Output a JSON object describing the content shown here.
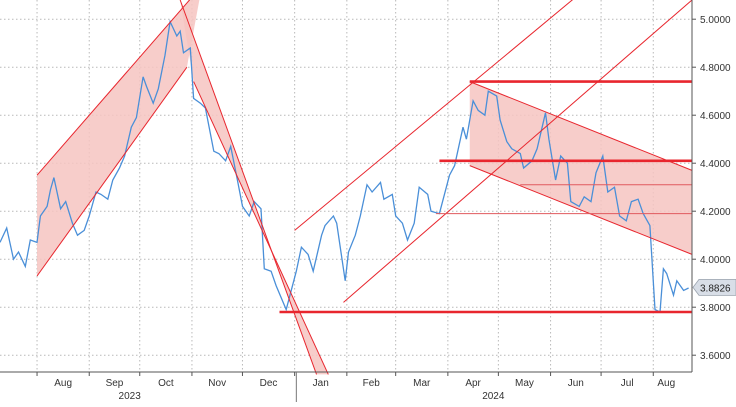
{
  "chart_data": {
    "type": "line",
    "title": "",
    "xlabel": "",
    "ylabel": "",
    "ylim": [
      3.53,
      5.08
    ],
    "yticks": [
      3.6,
      3.8,
      4.0,
      4.2,
      4.4,
      4.6,
      4.8,
      5.0
    ],
    "ytick_labels": [
      "3.6000",
      "3.8000",
      "4.0000",
      "4.2000",
      "4.4000",
      "4.6000",
      "4.8000",
      "5.0000"
    ],
    "x_range": [
      "2023-07-10",
      "2024-08-24"
    ],
    "month_ticks": [
      {
        "date": "2023-08-01",
        "label": "Aug"
      },
      {
        "date": "2023-09-01",
        "label": "Sep"
      },
      {
        "date": "2023-10-01",
        "label": "Oct"
      },
      {
        "date": "2023-11-01",
        "label": "Nov"
      },
      {
        "date": "2023-12-01",
        "label": "Dec"
      },
      {
        "date": "2024-01-01",
        "label": "Jan"
      },
      {
        "date": "2024-02-01",
        "label": "Feb"
      },
      {
        "date": "2024-03-01",
        "label": "Mar"
      },
      {
        "date": "2024-04-01",
        "label": "Apr"
      },
      {
        "date": "2024-05-01",
        "label": "May"
      },
      {
        "date": "2024-06-01",
        "label": "Jun"
      },
      {
        "date": "2024-07-01",
        "label": "Jul"
      },
      {
        "date": "2024-08-01",
        "label": "Aug"
      }
    ],
    "year_labels": [
      {
        "date": "2023-09-25",
        "label": "2023"
      },
      {
        "date": "2024-04-28",
        "label": "2024"
      }
    ],
    "year_separator": "2024-01-02",
    "last_value": 3.8826,
    "last_value_label": "3.8826",
    "grid": true,
    "colors": {
      "series": "#4a8fd8",
      "annotation": "#e8262e",
      "channel_fill": "#f6c4c1",
      "last_value_box": "#d8dee7"
    },
    "series": [
      {
        "values": [
          [
            "2023-07-10",
            4.07
          ],
          [
            "2023-07-14",
            4.13
          ],
          [
            "2023-07-18",
            4.0
          ],
          [
            "2023-07-21",
            4.03
          ],
          [
            "2023-07-25",
            3.97
          ],
          [
            "2023-07-28",
            4.08
          ],
          [
            "2023-08-01",
            4.07
          ],
          [
            "2023-08-03",
            4.18
          ],
          [
            "2023-08-07",
            4.22
          ],
          [
            "2023-08-09",
            4.29
          ],
          [
            "2023-08-11",
            4.34
          ],
          [
            "2023-08-15",
            4.21
          ],
          [
            "2023-08-18",
            4.24
          ],
          [
            "2023-08-22",
            4.15
          ],
          [
            "2023-08-25",
            4.1
          ],
          [
            "2023-08-29",
            4.12
          ],
          [
            "2023-09-01",
            4.18
          ],
          [
            "2023-09-05",
            4.28
          ],
          [
            "2023-09-08",
            4.27
          ],
          [
            "2023-09-12",
            4.25
          ],
          [
            "2023-09-15",
            4.33
          ],
          [
            "2023-09-19",
            4.38
          ],
          [
            "2023-09-22",
            4.43
          ],
          [
            "2023-09-26",
            4.55
          ],
          [
            "2023-09-29",
            4.59
          ],
          [
            "2023-10-03",
            4.76
          ],
          [
            "2023-10-05",
            4.72
          ],
          [
            "2023-10-09",
            4.65
          ],
          [
            "2023-10-12",
            4.71
          ],
          [
            "2023-10-16",
            4.85
          ],
          [
            "2023-10-19",
            4.99
          ],
          [
            "2023-10-23",
            4.93
          ],
          [
            "2023-10-25",
            4.95
          ],
          [
            "2023-10-27",
            4.86
          ],
          [
            "2023-10-31",
            4.88
          ],
          [
            "2023-11-02",
            4.67
          ],
          [
            "2023-11-06",
            4.65
          ],
          [
            "2023-11-09",
            4.63
          ],
          [
            "2023-11-14",
            4.45
          ],
          [
            "2023-11-17",
            4.44
          ],
          [
            "2023-11-21",
            4.41
          ],
          [
            "2023-11-24",
            4.47
          ],
          [
            "2023-11-28",
            4.33
          ],
          [
            "2023-12-01",
            4.22
          ],
          [
            "2023-12-05",
            4.18
          ],
          [
            "2023-12-08",
            4.24
          ],
          [
            "2023-12-12",
            4.21
          ],
          [
            "2023-12-14",
            3.96
          ],
          [
            "2023-12-18",
            3.95
          ],
          [
            "2023-12-21",
            3.89
          ],
          [
            "2023-12-27",
            3.79
          ],
          [
            "2024-01-02",
            3.95
          ],
          [
            "2024-01-05",
            4.05
          ],
          [
            "2024-01-09",
            4.02
          ],
          [
            "2024-01-12",
            3.95
          ],
          [
            "2024-01-17",
            4.1
          ],
          [
            "2024-01-19",
            4.14
          ],
          [
            "2024-01-24",
            4.18
          ],
          [
            "2024-01-26",
            4.15
          ],
          [
            "2024-01-31",
            3.91
          ],
          [
            "2024-02-02",
            4.03
          ],
          [
            "2024-02-06",
            4.1
          ],
          [
            "2024-02-09",
            4.18
          ],
          [
            "2024-02-13",
            4.31
          ],
          [
            "2024-02-16",
            4.28
          ],
          [
            "2024-02-21",
            4.32
          ],
          [
            "2024-02-23",
            4.25
          ],
          [
            "2024-02-28",
            4.27
          ],
          [
            "2024-03-01",
            4.18
          ],
          [
            "2024-03-05",
            4.15
          ],
          [
            "2024-03-08",
            4.08
          ],
          [
            "2024-03-12",
            4.15
          ],
          [
            "2024-03-15",
            4.3
          ],
          [
            "2024-03-20",
            4.27
          ],
          [
            "2024-03-22",
            4.2
          ],
          [
            "2024-03-27",
            4.19
          ],
          [
            "2024-04-02",
            4.35
          ],
          [
            "2024-04-05",
            4.39
          ],
          [
            "2024-04-10",
            4.55
          ],
          [
            "2024-04-12",
            4.5
          ],
          [
            "2024-04-16",
            4.66
          ],
          [
            "2024-04-19",
            4.62
          ],
          [
            "2024-04-23",
            4.6
          ],
          [
            "2024-04-25",
            4.7
          ],
          [
            "2024-04-30",
            4.68
          ],
          [
            "2024-05-02",
            4.58
          ],
          [
            "2024-05-06",
            4.49
          ],
          [
            "2024-05-09",
            4.46
          ],
          [
            "2024-05-14",
            4.44
          ],
          [
            "2024-05-16",
            4.38
          ],
          [
            "2024-05-21",
            4.41
          ],
          [
            "2024-05-24",
            4.46
          ],
          [
            "2024-05-29",
            4.61
          ],
          [
            "2024-05-31",
            4.5
          ],
          [
            "2024-06-04",
            4.33
          ],
          [
            "2024-06-07",
            4.43
          ],
          [
            "2024-06-11",
            4.4
          ],
          [
            "2024-06-13",
            4.24
          ],
          [
            "2024-06-18",
            4.22
          ],
          [
            "2024-06-21",
            4.26
          ],
          [
            "2024-06-25",
            4.24
          ],
          [
            "2024-06-28",
            4.36
          ],
          [
            "2024-07-02",
            4.43
          ],
          [
            "2024-07-05",
            4.28
          ],
          [
            "2024-07-09",
            4.3
          ],
          [
            "2024-07-12",
            4.18
          ],
          [
            "2024-07-16",
            4.16
          ],
          [
            "2024-07-19",
            4.24
          ],
          [
            "2024-07-23",
            4.25
          ],
          [
            "2024-07-26",
            4.19
          ],
          [
            "2024-07-30",
            4.14
          ],
          [
            "2024-08-02",
            3.79
          ],
          [
            "2024-08-05",
            3.78
          ],
          [
            "2024-08-07",
            3.96
          ],
          [
            "2024-08-09",
            3.94
          ],
          [
            "2024-08-13",
            3.85
          ],
          [
            "2024-08-15",
            3.91
          ],
          [
            "2024-08-19",
            3.87
          ],
          [
            "2024-08-22",
            3.88
          ]
        ]
      }
    ],
    "horizontal_levels": [
      {
        "value": 4.74,
        "from": "2024-04-14",
        "to": "2024-08-24",
        "style": "thick"
      },
      {
        "value": 4.41,
        "from": "2024-03-27",
        "to": "2024-08-24",
        "style": "thick"
      },
      {
        "value": 3.78,
        "from": "2023-12-23",
        "to": "2024-08-24",
        "style": "thick"
      },
      {
        "value": 4.31,
        "from": "2024-05-14",
        "to": "2024-08-24",
        "style": "thin"
      },
      {
        "value": 4.19,
        "from": "2024-03-25",
        "to": "2024-08-24",
        "style": "thin"
      }
    ],
    "trend_channels": [
      {
        "lower": [
          [
            "2023-08-01",
            3.93
          ],
          [
            "2023-10-29",
            4.8
          ]
        ],
        "upper": [
          [
            "2023-08-01",
            4.35
          ],
          [
            "2023-11-07",
            5.14
          ]
        ]
      },
      {
        "lower": [
          [
            "2023-11-02",
            4.74
          ],
          [
            "2024-01-21",
            3.52
          ]
        ],
        "upper": [
          [
            "2023-10-25",
            5.08
          ],
          [
            "2024-01-14",
            3.52
          ]
        ]
      },
      {
        "lower": [
          [
            "2024-04-14",
            4.39
          ],
          [
            "2024-08-24",
            4.02
          ]
        ],
        "upper": [
          [
            "2024-04-14",
            4.74
          ],
          [
            "2024-08-24",
            4.37
          ]
        ]
      }
    ],
    "trend_lines": [
      [
        [
          "2024-01-01",
          4.12
        ],
        [
          "2024-06-19",
          5.11
        ]
      ],
      [
        [
          "2024-01-30",
          3.82
        ],
        [
          "2024-08-24",
          5.08
        ]
      ]
    ]
  }
}
